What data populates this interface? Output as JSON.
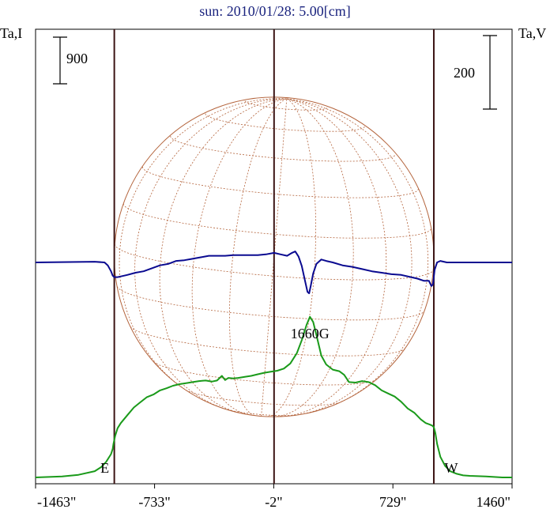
{
  "chart_data": {
    "type": "line",
    "title": "sun: 2010/01/28: 5.00[cm]",
    "left_axis_label": "Ta,I",
    "right_axis_label": "Ta,V",
    "left_scale_bar_label": "900",
    "right_scale_bar_label": "200",
    "x_tick_labels": [
      "-1463\"",
      "-733\"",
      "-2\"",
      "729\"",
      "1460\""
    ],
    "x_ticks": [
      -1463,
      -733,
      -2,
      729,
      1460
    ],
    "xlim": [
      -1463,
      1460
    ],
    "limb_markers": [
      {
        "label": "E",
        "x": -980
      },
      {
        "label": "W",
        "x": 980
      }
    ],
    "center_line_x": 0,
    "disk_radius_arcsec": 980,
    "annotations": [
      {
        "text": "1660G",
        "x": 220
      }
    ],
    "colors": {
      "title": "#1a237e",
      "intensity": "#1a9a1a",
      "circular_polarization": "#0a0a90",
      "limb_lines": "#3b1414",
      "disk": "#b4643c"
    },
    "series": [
      {
        "key": "intensity",
        "axis": "left",
        "x": [
          -1463,
          -1300,
          -1200,
          -1100,
          -1060,
          -1030,
          -1000,
          -990,
          -985,
          -975,
          -960,
          -940,
          -900,
          -860,
          -820,
          -780,
          -740,
          -700,
          -660,
          -620,
          -580,
          -540,
          -500,
          -460,
          -420,
          -380,
          -350,
          -320,
          -300,
          -280,
          -250,
          -220,
          -180,
          -140,
          -100,
          -60,
          -20,
          20,
          60,
          100,
          140,
          170,
          200,
          220,
          240,
          260,
          290,
          320,
          360,
          400,
          430,
          460,
          500,
          540,
          580,
          620,
          660,
          700,
          740,
          780,
          820,
          860,
          900,
          930,
          955,
          970,
          980,
          990,
          1000,
          1020,
          1050,
          1080,
          1120,
          1160,
          1200,
          1300,
          1400,
          1460
        ],
        "values": [
          0,
          0.02,
          0.05,
          0.12,
          0.2,
          0.3,
          0.45,
          0.55,
          0.65,
          0.8,
          0.95,
          1.05,
          1.2,
          1.35,
          1.45,
          1.55,
          1.6,
          1.68,
          1.72,
          1.77,
          1.8,
          1.82,
          1.84,
          1.86,
          1.87,
          1.85,
          1.87,
          1.96,
          1.88,
          1.92,
          1.91,
          1.92,
          1.94,
          1.96,
          1.99,
          2.02,
          2.04,
          2.06,
          2.1,
          2.2,
          2.4,
          2.65,
          2.95,
          3.1,
          3.0,
          2.75,
          2.35,
          2.18,
          2.08,
          2.05,
          1.98,
          1.84,
          1.83,
          1.86,
          1.84,
          1.78,
          1.68,
          1.62,
          1.56,
          1.46,
          1.33,
          1.25,
          1.12,
          1.05,
          1.02,
          1.0,
          0.97,
          0.85,
          0.65,
          0.4,
          0.22,
          0.12,
          0.07,
          0.04,
          0.03,
          0.02,
          0.0,
          0.0
        ]
      },
      {
        "key": "circular_polarization",
        "axis": "right",
        "x": [
          -1463,
          -1100,
          -1040,
          -1020,
          -1000,
          -990,
          -980,
          -960,
          -940,
          -900,
          -850,
          -800,
          -750,
          -700,
          -650,
          -600,
          -550,
          -500,
          -450,
          -400,
          -350,
          -300,
          -250,
          -200,
          -150,
          -100,
          -50,
          0,
          40,
          80,
          110,
          130,
          150,
          170,
          190,
          205,
          215,
          225,
          240,
          260,
          290,
          320,
          360,
          420,
          480,
          540,
          600,
          660,
          720,
          780,
          840,
          880,
          920,
          950,
          965,
          975,
          985,
          1000,
          1020,
          1060,
          1100,
          1200,
          1460
        ],
        "values": [
          0,
          0.01,
          0.0,
          -0.04,
          -0.12,
          -0.18,
          -0.2,
          -0.2,
          -0.19,
          -0.17,
          -0.14,
          -0.12,
          -0.08,
          -0.04,
          -0.02,
          0.02,
          0.03,
          0.05,
          0.07,
          0.09,
          0.09,
          0.09,
          0.1,
          0.1,
          0.1,
          0.1,
          0.11,
          0.13,
          0.11,
          0.09,
          0.13,
          0.15,
          0.08,
          -0.05,
          -0.25,
          -0.4,
          -0.42,
          -0.32,
          -0.15,
          -0.02,
          0.04,
          0.02,
          0.0,
          -0.04,
          -0.06,
          -0.09,
          -0.12,
          -0.14,
          -0.16,
          -0.17,
          -0.2,
          -0.22,
          -0.25,
          -0.25,
          -0.32,
          -0.3,
          -0.1,
          0.0,
          0.02,
          0.0,
          0.0,
          0.0,
          0.0
        ]
      }
    ]
  }
}
